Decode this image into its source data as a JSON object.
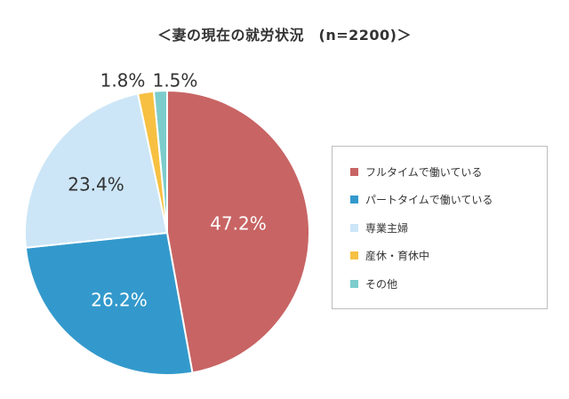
{
  "chart_data": {
    "type": "pie",
    "title": "＜妻の現在の就労状況　(n=2200)＞",
    "slices": [
      {
        "label": "フルタイムで働いている",
        "value": 47.2,
        "display": "47.2%",
        "color": "#c86464"
      },
      {
        "label": "パートタイムで働いている",
        "value": 26.2,
        "display": "26.2%",
        "color": "#3399cc"
      },
      {
        "label": "専業主婦",
        "value": 23.4,
        "display": "23.4%",
        "color": "#cce6f7"
      },
      {
        "label": "産休・育休中",
        "value": 1.8,
        "display": "1.8%",
        "color": "#f7c042"
      },
      {
        "label": "その他",
        "value": 1.5,
        "display": "1.5%",
        "color": "#7ccccc"
      }
    ],
    "legend_position": "right"
  }
}
